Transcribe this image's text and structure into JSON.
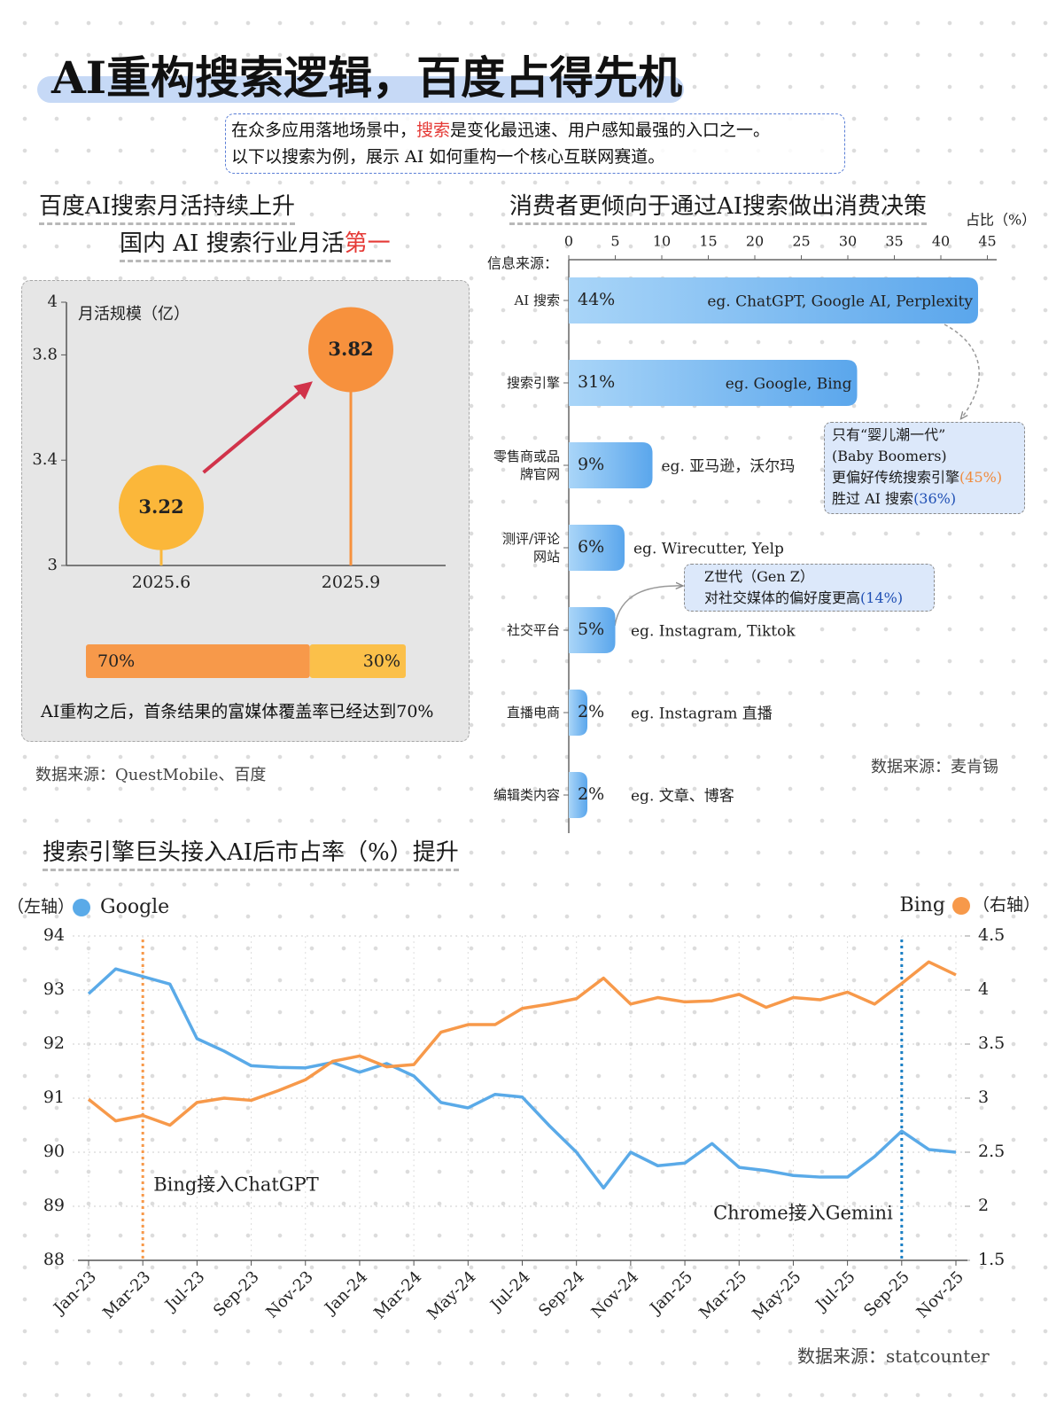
{
  "header": {
    "title": "AI重构搜索逻辑，百度占得先机",
    "intro": {
      "line1_before": "在众多应用落地场景中，",
      "line1_highlight": "搜索",
      "line1_after": "是变化最迅速、用户感知最强的入口之一。",
      "line2": "以下以搜索为例，展示 AI 如何重构一个核心互联网赛道。"
    }
  },
  "chart_data": [
    {
      "type": "bubble",
      "title": "百度AI搜索月活持续上升",
      "subtitle": [
        "国内 AI 搜索行业月活",
        "第一"
      ],
      "ylabel": "月活规模（亿）",
      "categories": [
        "2025.6",
        "2025.9"
      ],
      "values": [
        3.22,
        3.82
      ],
      "colors": [
        "#fbb73a",
        "#f7913d"
      ],
      "ylim": [
        3,
        4
      ],
      "yticks": [
        3,
        3.4,
        3.8,
        4
      ]
    },
    {
      "type": "stacked-bar",
      "values": [
        70,
        30
      ],
      "value_labels": [
        "70%",
        "30%"
      ],
      "colors": [
        "#f7994a",
        "#fbc04a"
      ],
      "xlim": [
        0,
        100
      ],
      "note": "AI重构之后，首条结果的富媒体覆盖率已经达到70%",
      "source": "数据来源：QuestMobile、百度"
    },
    {
      "type": "hbar",
      "title": "消费者更倾向于通过AI搜索做出消费决策",
      "xlabel": "占比（%）",
      "ylabel": "信息来源：",
      "categories": [
        "AI 搜索",
        "搜索引擎",
        "零售商或品牌官网",
        "测评/评论网站",
        "社交平台",
        "直播电商",
        "编辑类内容"
      ],
      "values": [
        44,
        31,
        9,
        6,
        5,
        2,
        2
      ],
      "value_labels": [
        "44%",
        "31%",
        "9%",
        "6%",
        "5%",
        "2%",
        "2%"
      ],
      "examples": [
        "eg. ChatGPT, Google AI, Perplexity",
        "eg. Google, Bing",
        "eg. 亚马逊，沃尔玛",
        "eg. Wirecutter, Yelp",
        "eg. Instagram, Tiktok",
        "eg. Instagram 直播",
        "eg. 文章、博客"
      ],
      "color": "#5aa6ec",
      "xlim": [
        0,
        46
      ],
      "xticks": [
        0,
        5,
        10,
        15,
        20,
        25,
        30,
        35,
        40,
        45
      ],
      "callouts": [
        {
          "lines": [
            [
              "只有“婴儿潮一代”"
            ],
            [
              "(Baby Boomers)"
            ],
            [
              "更偏好传统搜索引擎",
              "(45%)"
            ],
            [
              "胜过 AI 搜索",
              "(36%)"
            ]
          ]
        },
        {
          "lines": [
            [
              "Z世代（Gen Z）"
            ],
            [
              "对社交媒体的偏好度更高",
              "(14%)"
            ]
          ]
        }
      ],
      "source": "数据来源：麦肯锡"
    },
    {
      "type": "dual-line",
      "title": "搜索引擎巨头接入AI后市占率（%）提升",
      "ylabel": "（左轴）",
      "y2label": "（右轴）",
      "x": [
        "Jan-23",
        null,
        "Mar-23",
        null,
        "Jul-23",
        null,
        "Sep-23",
        null,
        "Nov-23",
        null,
        "Jan-24",
        null,
        "Mar-24",
        null,
        "May-24",
        null,
        "Jul-24",
        null,
        "Sep-24",
        null,
        "Nov-24",
        null,
        "Jan-25",
        null,
        "Mar-25",
        null,
        "May-25",
        null,
        "Jul-25",
        null,
        "Sep-25",
        null,
        "Nov-25"
      ],
      "series": [
        {
          "name": "Google",
          "color": "#5aaae8",
          "values": [
            92.93,
            93.39,
            93.25,
            93.11,
            92.1,
            91.87,
            91.6,
            91.57,
            91.56,
            91.66,
            91.48,
            91.64,
            91.41,
            90.92,
            90.82,
            91.07,
            91.02,
            90.49,
            90.0,
            89.34,
            90.0,
            89.75,
            89.8,
            90.16,
            89.72,
            89.66,
            89.57,
            89.54,
            89.54,
            89.92,
            90.39,
            90.05,
            90.0
          ]
        },
        {
          "name": "Bing",
          "color": "#f7994a",
          "axis": "y2",
          "values": [
            2.99,
            2.79,
            2.84,
            2.75,
            2.96,
            3.0,
            2.98,
            3.07,
            3.17,
            3.34,
            3.39,
            3.29,
            3.31,
            3.61,
            3.68,
            3.68,
            3.83,
            3.87,
            3.92,
            4.11,
            3.87,
            3.93,
            3.89,
            3.9,
            3.96,
            3.84,
            3.93,
            3.91,
            3.98,
            3.87,
            4.06,
            4.26,
            4.14
          ]
        }
      ],
      "ylim": [
        88,
        94
      ],
      "yticks": [
        88,
        89,
        90,
        91,
        92,
        93,
        94
      ],
      "y2lim": [
        1.5,
        4.5
      ],
      "y2ticks": [
        1.5,
        2,
        2.5,
        3,
        3.5,
        4,
        4.5
      ],
      "grid": true,
      "annotations": [
        {
          "text": "Bing接入ChatGPT",
          "x": "Mar-23",
          "color": "#f7994a"
        },
        {
          "text": "Chrome接入Gemini",
          "x": "Sep-25",
          "color": "#1a7fc4"
        }
      ],
      "source": "数据来源：statcounter"
    }
  ]
}
